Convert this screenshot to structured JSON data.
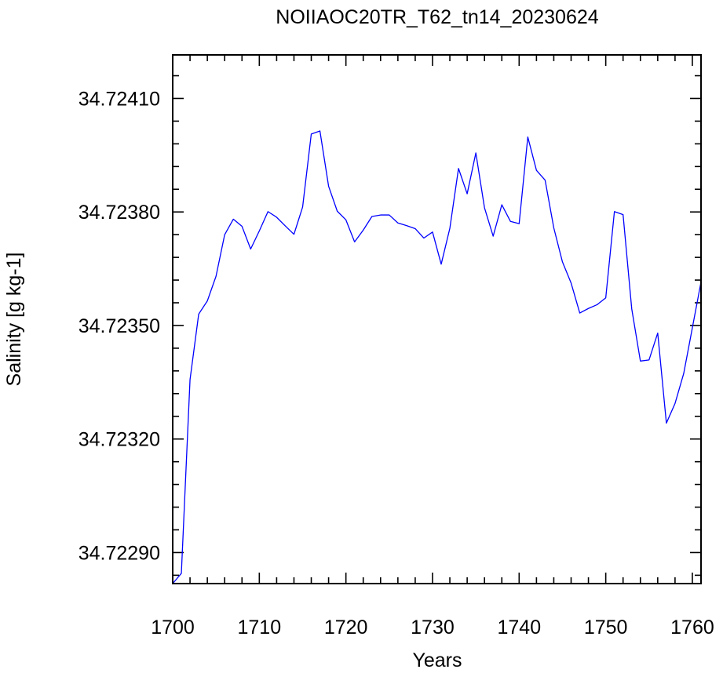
{
  "chart_data": {
    "type": "line",
    "title": "NOIIAOC20TR_T62_tn14_20230624",
    "xlabel": "Years",
    "ylabel": "Salinity [g kg-1]",
    "xlim": [
      1700,
      1761
    ],
    "ylim": [
      34.722818,
      34.724215
    ],
    "xticks": [
      1700,
      1710,
      1720,
      1730,
      1740,
      1750,
      1760
    ],
    "xtick_labels": [
      "1700",
      "1710",
      "1720",
      "1730",
      "1740",
      "1750",
      "1760"
    ],
    "xminor_step": 2,
    "yticks": [
      34.7229,
      34.7232,
      34.7235,
      34.7238,
      34.7241
    ],
    "ytick_labels": [
      "34.72290",
      "34.72320",
      "34.72350",
      "34.72380",
      "34.72410"
    ],
    "yminor_step": 6e-05,
    "grid": false,
    "line_color": "#0000ff",
    "series": [
      {
        "x": [
          1700,
          1701,
          1702,
          1703,
          1704,
          1705,
          1706,
          1707,
          1708,
          1709,
          1710,
          1711,
          1712,
          1713,
          1714,
          1715,
          1716,
          1717,
          1718,
          1719,
          1720,
          1721,
          1722,
          1723,
          1724,
          1725,
          1726,
          1727,
          1728,
          1729,
          1730,
          1731,
          1732,
          1733,
          1734,
          1735,
          1736,
          1737,
          1738,
          1739,
          1740,
          1741,
          1742,
          1743,
          1744,
          1745,
          1746,
          1747,
          1748,
          1749,
          1750,
          1751,
          1752,
          1753,
          1754,
          1755,
          1756,
          1757,
          1758,
          1759,
          1760,
          1761
        ],
        "y": [
          34.722818,
          34.722845,
          34.723357,
          34.72353,
          34.723565,
          34.72363,
          34.72374,
          34.723781,
          34.723762,
          34.723702,
          34.72375,
          34.723801,
          34.723786,
          34.723763,
          34.723741,
          34.723813,
          34.724006,
          34.724014,
          34.723868,
          34.723802,
          34.723779,
          34.723721,
          34.723752,
          34.723788,
          34.723792,
          34.723792,
          34.723771,
          34.723764,
          34.723756,
          34.723731,
          34.723747,
          34.723662,
          34.723757,
          34.723915,
          34.723848,
          34.723956,
          34.723811,
          34.723736,
          34.723819,
          34.723775,
          34.723769,
          34.723998,
          34.72391,
          34.723884,
          34.723758,
          34.723668,
          34.723612,
          34.723533,
          34.723545,
          34.723555,
          34.723573,
          34.723801,
          34.723793,
          34.723544,
          34.723406,
          34.723409,
          34.72348,
          34.723242,
          34.723294,
          34.723373,
          34.723494,
          34.723615
        ]
      }
    ]
  }
}
